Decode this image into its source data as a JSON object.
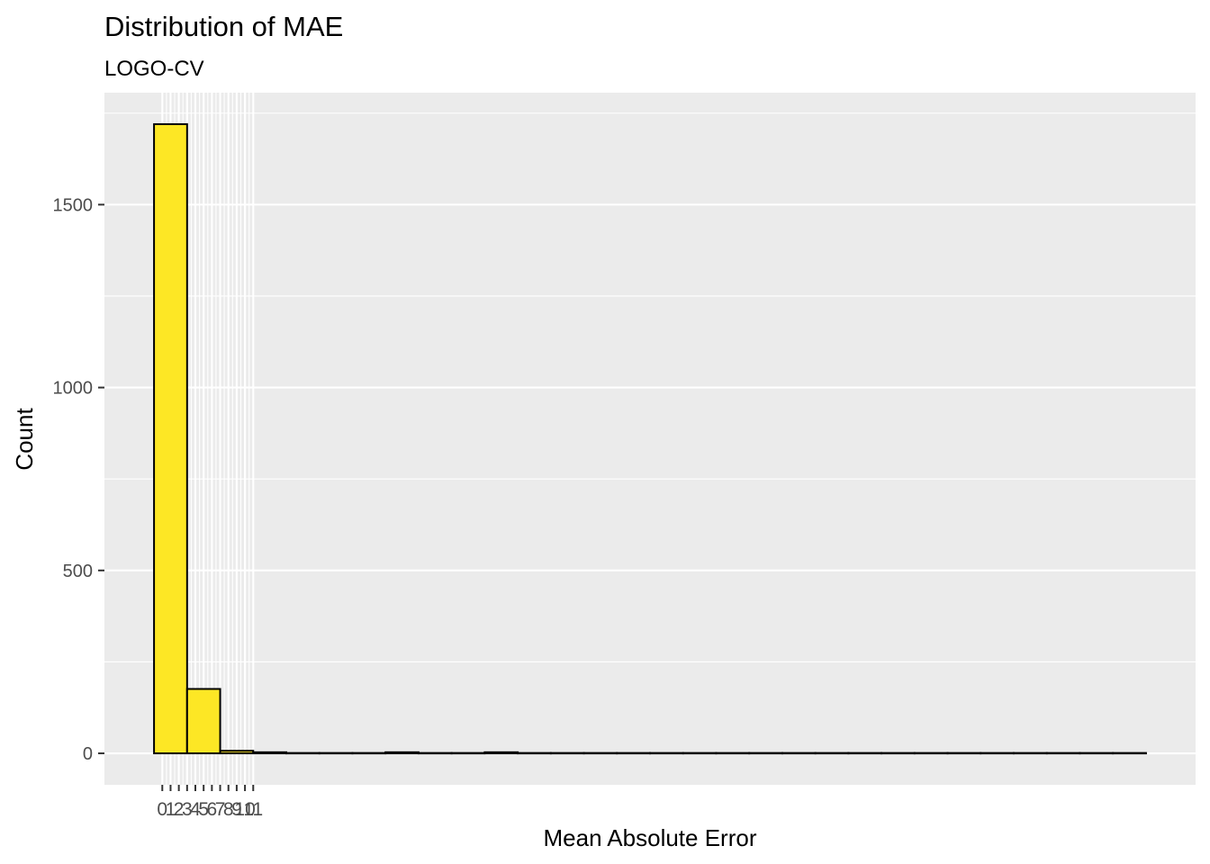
{
  "chart_data": {
    "type": "bar",
    "title": "Distribution of MAE",
    "subtitle": "LOGO-CV",
    "xlabel": "Mean Absolute Error",
    "ylabel": "Count",
    "bin_width": 1,
    "bins": [
      {
        "x0": 0,
        "x1": 1,
        "value": 1720
      },
      {
        "x0": 1,
        "x1": 2,
        "value": 176
      },
      {
        "x0": 2,
        "x1": 3,
        "value": 7
      },
      {
        "x0": 3,
        "x1": 4,
        "value": 3
      },
      {
        "x0": 4,
        "x1": 5,
        "value": 1
      },
      {
        "x0": 5,
        "x1": 6,
        "value": 1
      },
      {
        "x0": 6,
        "x1": 7,
        "value": 1
      },
      {
        "x0": 7,
        "x1": 8,
        "value": 3
      },
      {
        "x0": 8,
        "x1": 9,
        "value": 1
      },
      {
        "x0": 9,
        "x1": 10,
        "value": 1
      },
      {
        "x0": 10,
        "x1": 11,
        "value": 3
      },
      {
        "x0": 11,
        "x1": 12,
        "value": 1
      },
      {
        "x0": 12,
        "x1": 13,
        "value": 1
      },
      {
        "x0": 13,
        "x1": 14,
        "value": 1
      },
      {
        "x0": 14,
        "x1": 15,
        "value": 1
      },
      {
        "x0": 15,
        "x1": 16,
        "value": 1
      },
      {
        "x0": 16,
        "x1": 17,
        "value": 1
      },
      {
        "x0": 17,
        "x1": 18,
        "value": 1
      },
      {
        "x0": 18,
        "x1": 19,
        "value": 1
      },
      {
        "x0": 19,
        "x1": 20,
        "value": 1
      },
      {
        "x0": 20,
        "x1": 21,
        "value": 1
      },
      {
        "x0": 21,
        "x1": 22,
        "value": 1
      },
      {
        "x0": 22,
        "x1": 23,
        "value": 1
      },
      {
        "x0": 23,
        "x1": 24,
        "value": 1
      },
      {
        "x0": 24,
        "x1": 25,
        "value": 1
      },
      {
        "x0": 25,
        "x1": 26,
        "value": 1
      },
      {
        "x0": 26,
        "x1": 27,
        "value": 1
      },
      {
        "x0": 27,
        "x1": 28,
        "value": 1
      },
      {
        "x0": 28,
        "x1": 29,
        "value": 1
      },
      {
        "x0": 29,
        "x1": 30,
        "value": 1
      }
    ],
    "x_ticks": [
      0.25,
      0.5,
      0.75,
      1.0,
      1.25,
      1.5,
      1.75,
      2.0,
      2.25,
      2.5,
      2.75,
      3.0
    ],
    "x_tick_labels": [
      "0",
      "1",
      "2",
      "3",
      "4",
      "5",
      "6",
      "7",
      "8",
      "9",
      "10",
      "11"
    ],
    "xlim": [
      -1.5,
      31.5
    ],
    "y_ticks": [
      0,
      500,
      1000,
      1500
    ],
    "y_tick_labels": [
      "0",
      "500",
      "1000",
      "1500"
    ],
    "ylim": [
      -86,
      1806
    ],
    "grid": true,
    "bar_fill": "#FDE725",
    "bar_stroke": "#000000",
    "panel_background": "#EBEBEB",
    "grid_color": "#FFFFFF"
  }
}
